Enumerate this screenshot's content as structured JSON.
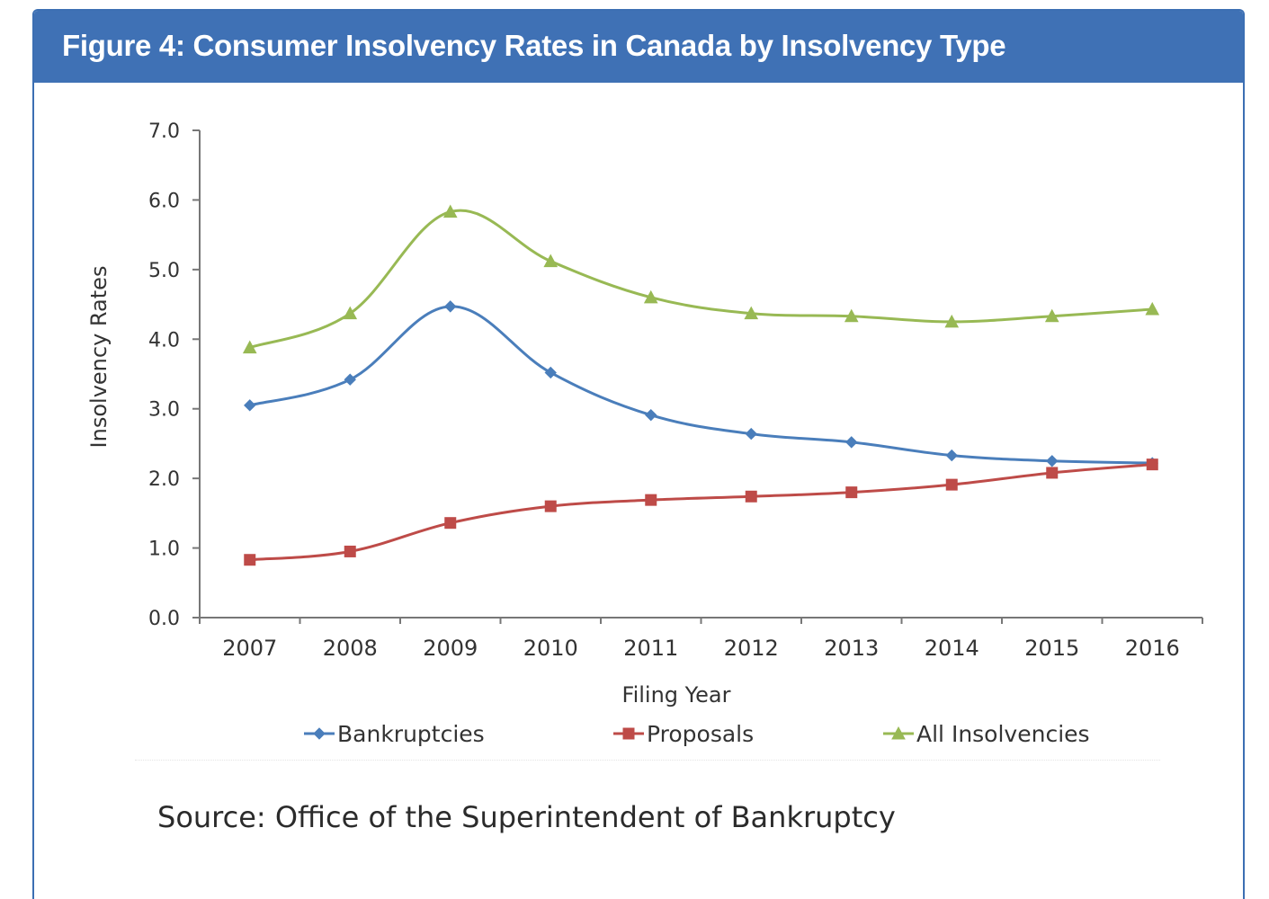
{
  "figure": {
    "title": "Figure 4: Consumer Insolvency Rates in Canada by Insolvency Type",
    "source": "Source: Office of the Superintendent of Bankruptcy",
    "header_color": "#3f71b5"
  },
  "chart_data": {
    "type": "line",
    "title": "",
    "xlabel": "Filing Year",
    "ylabel": "Insolvency Rates",
    "categories": [
      "2007",
      "2008",
      "2009",
      "2010",
      "2011",
      "2012",
      "2013",
      "2014",
      "2015",
      "2016"
    ],
    "ylim": [
      0,
      7
    ],
    "yticks": [
      0,
      1,
      2,
      3,
      4,
      5,
      6,
      7
    ],
    "ytick_labels": [
      "0.0",
      "1.0",
      "2.0",
      "3.0",
      "4.0",
      "5.0",
      "6.0",
      "7.0"
    ],
    "grid": false,
    "legend_position": "bottom",
    "smooth": true,
    "series": [
      {
        "name": "Bankruptcies",
        "marker": "diamond",
        "color": "#4a7ebb",
        "values": [
          3.05,
          3.42,
          4.47,
          3.52,
          2.91,
          2.64,
          2.52,
          2.33,
          2.25,
          2.22
        ]
      },
      {
        "name": "Proposals",
        "marker": "square",
        "color": "#be4b48",
        "values": [
          0.83,
          0.95,
          1.36,
          1.6,
          1.69,
          1.74,
          1.8,
          1.91,
          2.08,
          2.2
        ]
      },
      {
        "name": "All Insolvencies",
        "marker": "triangle",
        "color": "#98b954",
        "values": [
          3.88,
          4.37,
          5.83,
          5.12,
          4.6,
          4.37,
          4.33,
          4.25,
          4.33,
          4.43
        ]
      }
    ]
  }
}
